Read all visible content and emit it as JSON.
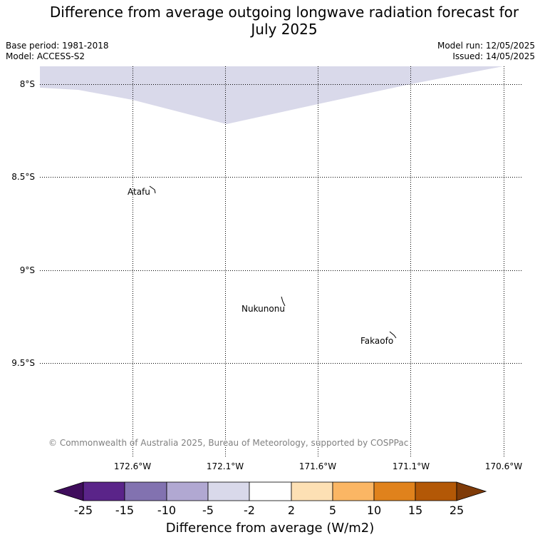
{
  "title_line1": "Difference from average outgoing longwave radiation forecast for",
  "title_line2": "July 2025",
  "base_period": "Base period: 1981-2018",
  "model": "Model: ACCESS-S2",
  "model_run": "Model run: 12/05/2025",
  "issued": "Issued: 14/05/2025",
  "lat_labels": [
    "8°S",
    "8.5°S",
    "9°S",
    "9.5°S"
  ],
  "lon_labels": [
    "172.6°W",
    "172.1°W",
    "171.6°W",
    "171.1°W",
    "170.6°W"
  ],
  "places": [
    "Atafu",
    "Nukunonu",
    "Fakaofo"
  ],
  "copyright": "© Commonwealth of Australia 2025, Bureau of Meteorology, supported by COSPPac",
  "colorbar": {
    "ticks": [
      "-25",
      "-15",
      "-10",
      "-5",
      "-2",
      "2",
      "5",
      "10",
      "15",
      "25"
    ],
    "colors": [
      "#3f0d5c",
      "#5a2489",
      "#8272b0",
      "#b1a8d2",
      "#d9d9ea",
      "#ffffff",
      "#fde0b4",
      "#fbb664",
      "#e0821c",
      "#b35806",
      "#7f3b08"
    ],
    "label": "Difference from average (W/m2)"
  },
  "shaded_region_color": "#d9d9ea"
}
